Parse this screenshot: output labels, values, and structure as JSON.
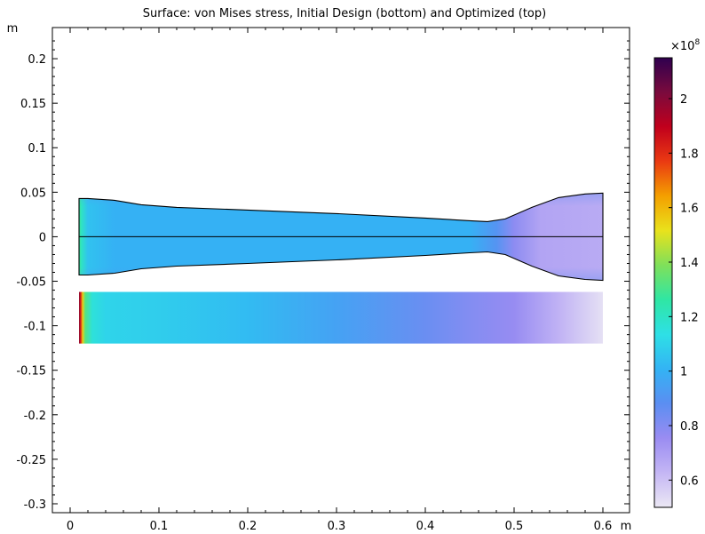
{
  "chart_data": {
    "type": "heatmap",
    "title": "Surface: von Mises stress, Initial Design (bottom) and Optimized (top)",
    "x_unit": "m",
    "y_unit": "m",
    "xlim": [
      -0.02,
      0.63
    ],
    "ylim": [
      -0.31,
      0.235
    ],
    "xticks": [
      0,
      0.1,
      0.2,
      0.3,
      0.4,
      0.5,
      0.6
    ],
    "xtick_labels": [
      "0",
      "0.1",
      "0.2",
      "0.3",
      "0.4",
      "0.5",
      "0.6"
    ],
    "yticks": [
      0.2,
      0.15,
      0.1,
      0.05,
      0,
      -0.05,
      -0.1,
      -0.15,
      -0.2,
      -0.25,
      -0.3
    ],
    "ytick_labels": [
      "0.2",
      "0.15",
      "0.1",
      "0.05",
      "0",
      "-0.05",
      "-0.1",
      "-0.15",
      "-0.2",
      "-0.25",
      "-0.3"
    ],
    "colorbar": {
      "exponent_label": "×10",
      "exponent": "8",
      "range": [
        0.5,
        2.15
      ],
      "ticks": [
        0.6,
        0.8,
        1,
        1.2,
        1.4,
        1.6,
        1.8,
        2
      ],
      "tick_labels": [
        "0.6",
        "0.8",
        "1",
        "1.2",
        "1.4",
        "1.6",
        "1.8",
        "2"
      ],
      "colormap": [
        "#2f004f",
        "#7a0a3d",
        "#c1001c",
        "#ea3a12",
        "#f4a000",
        "#e9e21c",
        "#7fe05a",
        "#2fe6a4",
        "#2ee0e6",
        "#33b3f4",
        "#5b8ef2",
        "#9a8cf2",
        "#c4b6f4",
        "#ebe8f4"
      ]
    },
    "optimized_design": {
      "x_range": [
        0.01,
        0.6
      ],
      "centerline_y": 0,
      "top_boundary": [
        [
          0.01,
          0.043
        ],
        [
          0.02,
          0.043
        ],
        [
          0.05,
          0.041
        ],
        [
          0.08,
          0.036
        ],
        [
          0.12,
          0.033
        ],
        [
          0.2,
          0.03
        ],
        [
          0.3,
          0.026
        ],
        [
          0.4,
          0.021
        ],
        [
          0.45,
          0.018
        ],
        [
          0.47,
          0.017
        ],
        [
          0.49,
          0.02
        ],
        [
          0.52,
          0.033
        ],
        [
          0.55,
          0.044
        ],
        [
          0.58,
          0.048
        ],
        [
          0.6,
          0.049
        ]
      ],
      "bottom_boundary": [
        [
          0.01,
          -0.043
        ],
        [
          0.02,
          -0.043
        ],
        [
          0.05,
          -0.041
        ],
        [
          0.08,
          -0.036
        ],
        [
          0.12,
          -0.033
        ],
        [
          0.2,
          -0.03
        ],
        [
          0.3,
          -0.026
        ],
        [
          0.4,
          -0.021
        ],
        [
          0.45,
          -0.018
        ],
        [
          0.47,
          -0.017
        ],
        [
          0.49,
          -0.02
        ],
        [
          0.52,
          -0.033
        ],
        [
          0.55,
          -0.044
        ],
        [
          0.58,
          -0.048
        ],
        [
          0.6,
          -0.049
        ]
      ],
      "stress_profile": [
        [
          0.01,
          1.28
        ],
        [
          0.013,
          1.2
        ],
        [
          0.02,
          1.05
        ],
        [
          0.05,
          1.0
        ],
        [
          0.3,
          1.0
        ],
        [
          0.45,
          1.0
        ],
        [
          0.48,
          0.9
        ],
        [
          0.5,
          0.78
        ],
        [
          0.53,
          0.68
        ],
        [
          0.6,
          0.66
        ]
      ],
      "fillet_stress": 0.88
    },
    "initial_design": {
      "x_range": [
        0.01,
        0.6
      ],
      "y_range": [
        -0.12,
        -0.062
      ],
      "stress_profile": [
        [
          0.01,
          2.0
        ],
        [
          0.012,
          1.82
        ],
        [
          0.014,
          1.55
        ],
        [
          0.017,
          1.32
        ],
        [
          0.025,
          1.16
        ],
        [
          0.04,
          1.1
        ],
        [
          0.1,
          1.08
        ],
        [
          0.2,
          1.03
        ],
        [
          0.3,
          0.95
        ],
        [
          0.4,
          0.85
        ],
        [
          0.45,
          0.8
        ],
        [
          0.5,
          0.76
        ],
        [
          0.55,
          0.64
        ],
        [
          0.6,
          0.52
        ]
      ]
    }
  }
}
